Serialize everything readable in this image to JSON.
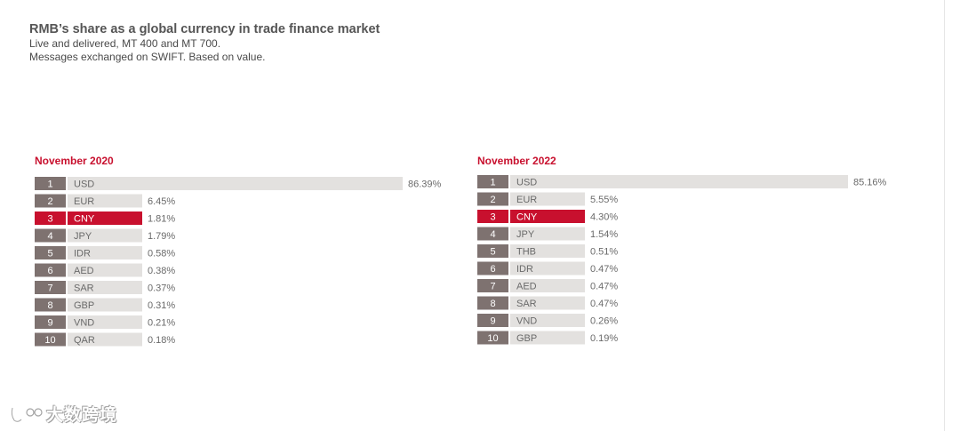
{
  "title": "RMB’s share as a global currency in trade finance market",
  "subtitle_lines": [
    "Live and delivered, MT 400 and MT 700.",
    "Messages exchanged on SWIFT. Based on value."
  ],
  "watermark": "大数跨境",
  "colors": {
    "accent": "#c8102e",
    "rank_box": "#7e7270",
    "bar": "#e3e1df"
  },
  "chart_data": [
    {
      "type": "bar",
      "title": "November 2020",
      "highlight": "CNY",
      "ranks": [
        "1",
        "2",
        "3",
        "4",
        "5",
        "6",
        "7",
        "8",
        "9",
        "10"
      ],
      "categories": [
        "USD",
        "EUR",
        "CNY",
        "JPY",
        "IDR",
        "AED",
        "SAR",
        "GBP",
        "VND",
        "QAR"
      ],
      "values": [
        86.39,
        6.45,
        1.81,
        1.79,
        0.58,
        0.38,
        0.37,
        0.31,
        0.21,
        0.18
      ],
      "labels": [
        "86.39%",
        "6.45%",
        "1.81%",
        "1.79%",
        "0.58%",
        "0.38%",
        "0.37%",
        "0.31%",
        "0.21%",
        "0.18%"
      ]
    },
    {
      "type": "bar",
      "title": "November 2022",
      "highlight": "CNY",
      "ranks": [
        "1",
        "2",
        "3",
        "4",
        "5",
        "6",
        "7",
        "8",
        "9",
        "10"
      ],
      "categories": [
        "USD",
        "EUR",
        "CNY",
        "JPY",
        "THB",
        "IDR",
        "AED",
        "SAR",
        "VND",
        "GBP"
      ],
      "values": [
        85.16,
        5.55,
        4.3,
        1.54,
        0.51,
        0.47,
        0.47,
        0.47,
        0.26,
        0.19
      ],
      "labels": [
        "85.16%",
        "5.55%",
        "4.30%",
        "1.54%",
        "0.51%",
        "0.47%",
        "0.47%",
        "0.47%",
        "0.26%",
        "0.19%"
      ]
    }
  ]
}
